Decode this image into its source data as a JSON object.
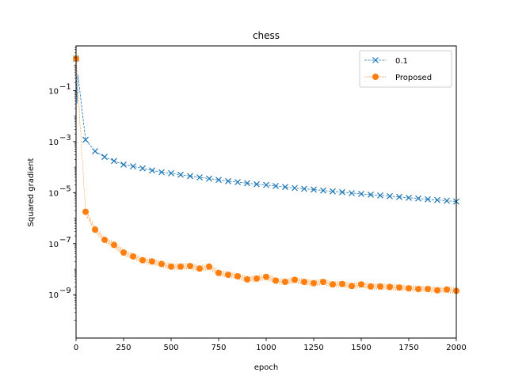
{
  "chart_data": {
    "type": "line",
    "title": "chess",
    "xlabel": "epoch",
    "ylabel": "Squared gradient",
    "xlim": [
      0,
      2000
    ],
    "ylim_log10": [
      -10.7,
      0.75
    ],
    "yscale": "log",
    "grid": false,
    "legend_position": "top-right",
    "x_ticks": [
      0,
      250,
      500,
      750,
      1000,
      1250,
      1500,
      1750,
      2000
    ],
    "x_tick_labels": [
      "0",
      "250",
      "500",
      "750",
      "1000",
      "1250",
      "1500",
      "1750",
      "2000"
    ],
    "y_ticks_log10": [
      -1,
      -3,
      -5,
      -7,
      -9
    ],
    "y_tick_labels": [
      "10",
      "10",
      "10",
      "10",
      "10"
    ],
    "y_tick_exponents": [
      "−1",
      "−3",
      "−5",
      "−7",
      "−9"
    ],
    "series": [
      {
        "name": "0.1",
        "color": "#1f77b4",
        "marker": "x",
        "x": [
          0,
          50,
          100,
          150,
          200,
          250,
          300,
          350,
          400,
          450,
          500,
          550,
          600,
          650,
          700,
          750,
          800,
          850,
          900,
          950,
          1000,
          1050,
          1100,
          1150,
          1200,
          1250,
          1300,
          1350,
          1400,
          1450,
          1500,
          1550,
          1600,
          1650,
          1700,
          1750,
          1800,
          1850,
          1900,
          1950,
          2000
        ],
        "y_log10": [
          0.25,
          -2.93,
          -3.38,
          -3.6,
          -3.76,
          -3.9,
          -3.97,
          -4.05,
          -4.13,
          -4.2,
          -4.24,
          -4.3,
          -4.35,
          -4.4,
          -4.45,
          -4.5,
          -4.55,
          -4.59,
          -4.63,
          -4.67,
          -4.7,
          -4.74,
          -4.78,
          -4.82,
          -4.85,
          -4.88,
          -4.92,
          -4.95,
          -4.98,
          -5.02,
          -5.05,
          -5.08,
          -5.11,
          -5.14,
          -5.17,
          -5.2,
          -5.23,
          -5.26,
          -5.29,
          -5.32,
          -5.35
        ]
      },
      {
        "name": "Proposed",
        "color": "#ff7f0e",
        "marker": "o",
        "x": [
          0,
          50,
          100,
          150,
          200,
          250,
          300,
          350,
          400,
          450,
          500,
          550,
          600,
          650,
          700,
          750,
          800,
          850,
          900,
          950,
          1000,
          1050,
          1100,
          1150,
          1200,
          1250,
          1300,
          1350,
          1400,
          1450,
          1500,
          1550,
          1600,
          1650,
          1700,
          1750,
          1800,
          1850,
          1900,
          1950,
          2000
        ],
        "y_log10": [
          0.25,
          -5.75,
          -6.45,
          -6.85,
          -7.05,
          -7.35,
          -7.5,
          -7.65,
          -7.7,
          -7.8,
          -7.9,
          -7.9,
          -7.88,
          -7.98,
          -7.9,
          -8.15,
          -8.22,
          -8.28,
          -8.4,
          -8.37,
          -8.3,
          -8.45,
          -8.5,
          -8.42,
          -8.5,
          -8.55,
          -8.5,
          -8.6,
          -8.58,
          -8.66,
          -8.6,
          -8.68,
          -8.68,
          -8.7,
          -8.72,
          -8.75,
          -8.78,
          -8.78,
          -8.83,
          -8.8,
          -8.85
        ]
      }
    ]
  }
}
